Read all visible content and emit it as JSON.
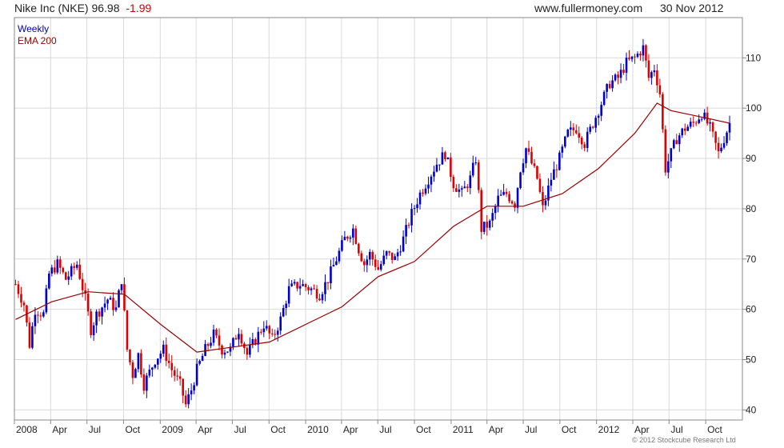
{
  "header": {
    "title": "Nike Inc (NKE) 96.98",
    "change": "-1.99",
    "site": "www.fullermoney.com",
    "date": "30 Nov 2012"
  },
  "copyright": "© 2012 Stockcube Research Ltd",
  "colors": {
    "up": "#0000cc",
    "down": "#dd0000",
    "ema": "#990000",
    "grid": "#d9d9d9"
  },
  "chart_data": {
    "type": "candlestick",
    "legend": {
      "position": "top-left",
      "entries": [
        "Weekly",
        "EMA 200"
      ]
    },
    "grid": true,
    "y_axis": {
      "side": "right",
      "range": [
        38,
        118
      ],
      "ticks": [
        40,
        50,
        60,
        70,
        80,
        90,
        100,
        110
      ]
    },
    "x_axis": {
      "range": [
        "2008-01-01",
        "2012-12-12"
      ],
      "ticks": [
        {
          "label": "2008",
          "date": "2008-01-01"
        },
        {
          "label": "Apr",
          "date": "2008-04-01"
        },
        {
          "label": "Jul",
          "date": "2008-07-01"
        },
        {
          "label": "Oct",
          "date": "2008-10-01"
        },
        {
          "label": "2009",
          "date": "2009-01-01"
        },
        {
          "label": "Apr",
          "date": "2009-04-01"
        },
        {
          "label": "Jul",
          "date": "2009-07-01"
        },
        {
          "label": "Oct",
          "date": "2009-10-01"
        },
        {
          "label": "2010",
          "date": "2010-01-01"
        },
        {
          "label": "Apr",
          "date": "2010-04-01"
        },
        {
          "label": "Jul",
          "date": "2010-07-01"
        },
        {
          "label": "Oct",
          "date": "2010-10-01"
        },
        {
          "label": "2011",
          "date": "2011-01-01"
        },
        {
          "label": "Apr",
          "date": "2011-04-01"
        },
        {
          "label": "Jul",
          "date": "2011-07-01"
        },
        {
          "label": "Oct",
          "date": "2011-10-01"
        },
        {
          "label": "2012",
          "date": "2012-01-01"
        },
        {
          "label": "Apr",
          "date": "2012-04-01"
        },
        {
          "label": "Jul",
          "date": "2012-07-01"
        },
        {
          "label": "Oct",
          "date": "2012-10-01"
        }
      ]
    },
    "close_path": [
      [
        "2008-01-04",
        65
      ],
      [
        "2008-01-25",
        61
      ],
      [
        "2008-02-08",
        53
      ],
      [
        "2008-02-22",
        60
      ],
      [
        "2008-03-14",
        59
      ],
      [
        "2008-03-28",
        67
      ],
      [
        "2008-04-18",
        69
      ],
      [
        "2008-05-09",
        66
      ],
      [
        "2008-06-06",
        69
      ],
      [
        "2008-06-27",
        62
      ],
      [
        "2008-07-11",
        56
      ],
      [
        "2008-07-25",
        59
      ],
      [
        "2008-08-22",
        62
      ],
      [
        "2008-09-12",
        60
      ],
      [
        "2008-09-26",
        66
      ],
      [
        "2008-10-10",
        52
      ],
      [
        "2008-10-24",
        47
      ],
      [
        "2008-11-07",
        51
      ],
      [
        "2008-11-21",
        45
      ],
      [
        "2008-12-19",
        50
      ],
      [
        "2009-01-09",
        52
      ],
      [
        "2009-01-30",
        48
      ],
      [
        "2009-02-20",
        45
      ],
      [
        "2009-03-06",
        41
      ],
      [
        "2009-03-20",
        44
      ],
      [
        "2009-04-03",
        48
      ],
      [
        "2009-04-24",
        52
      ],
      [
        "2009-05-15",
        55
      ],
      [
        "2009-06-05",
        52
      ],
      [
        "2009-06-26",
        52
      ],
      [
        "2009-07-17",
        56
      ],
      [
        "2009-08-07",
        51
      ],
      [
        "2009-08-28",
        54
      ],
      [
        "2009-09-18",
        57
      ],
      [
        "2009-10-09",
        54
      ],
      [
        "2009-10-30",
        58
      ],
      [
        "2009-11-20",
        64
      ],
      [
        "2009-12-18",
        65
      ],
      [
        "2010-01-15",
        64
      ],
      [
        "2010-02-05",
        63
      ],
      [
        "2010-02-26",
        66
      ],
      [
        "2010-03-19",
        70
      ],
      [
        "2010-04-09",
        74
      ],
      [
        "2010-04-30",
        76
      ],
      [
        "2010-05-14",
        72
      ],
      [
        "2010-05-28",
        69
      ],
      [
        "2010-06-11",
        71
      ],
      [
        "2010-07-02",
        68
      ],
      [
        "2010-07-23",
        71
      ],
      [
        "2010-08-13",
        70
      ],
      [
        "2010-09-03",
        74
      ],
      [
        "2010-09-24",
        79
      ],
      [
        "2010-10-15",
        83
      ],
      [
        "2010-11-05",
        86
      ],
      [
        "2010-11-26",
        89
      ],
      [
        "2010-12-17",
        91
      ],
      [
        "2011-01-07",
        85
      ],
      [
        "2011-01-28",
        83
      ],
      [
        "2011-02-18",
        86
      ],
      [
        "2011-03-04",
        90
      ],
      [
        "2011-03-18",
        76
      ],
      [
        "2011-04-08",
        77
      ],
      [
        "2011-04-29",
        82
      ],
      [
        "2011-05-20",
        83
      ],
      [
        "2011-06-10",
        81
      ],
      [
        "2011-06-24",
        88
      ],
      [
        "2011-07-08",
        92
      ],
      [
        "2011-08-05",
        86
      ],
      [
        "2011-08-19",
        80
      ],
      [
        "2011-09-09",
        86
      ],
      [
        "2011-09-30",
        90
      ],
      [
        "2011-10-21",
        95
      ],
      [
        "2011-11-11",
        96
      ],
      [
        "2011-12-02",
        93
      ],
      [
        "2011-12-23",
        97
      ],
      [
        "2012-01-13",
        101
      ],
      [
        "2012-02-03",
        105
      ],
      [
        "2012-02-24",
        106
      ],
      [
        "2012-03-16",
        109
      ],
      [
        "2012-04-06",
        110
      ],
      [
        "2012-04-27",
        112
      ],
      [
        "2012-05-11",
        106
      ],
      [
        "2012-05-25",
        108
      ],
      [
        "2012-06-08",
        103
      ],
      [
        "2012-06-22",
        88
      ],
      [
        "2012-07-06",
        91
      ],
      [
        "2012-07-20",
        94
      ],
      [
        "2012-08-10",
        96
      ],
      [
        "2012-08-31",
        97
      ],
      [
        "2012-09-21",
        99
      ],
      [
        "2012-10-12",
        96
      ],
      [
        "2012-11-02",
        91
      ],
      [
        "2012-11-16",
        94
      ],
      [
        "2012-11-30",
        97
      ]
    ],
    "ema_200": [
      [
        "2008-01-04",
        58
      ],
      [
        "2008-04-04",
        61.5
      ],
      [
        "2008-07-04",
        63.5
      ],
      [
        "2008-10-03",
        63
      ],
      [
        "2009-01-02",
        57
      ],
      [
        "2009-04-03",
        51.5
      ],
      [
        "2009-07-03",
        52.5
      ],
      [
        "2009-10-02",
        53.5
      ],
      [
        "2010-01-01",
        57
      ],
      [
        "2010-04-02",
        60.5
      ],
      [
        "2010-07-02",
        66.5
      ],
      [
        "2010-10-01",
        69.5
      ],
      [
        "2011-01-07",
        76.5
      ],
      [
        "2011-04-01",
        80.5
      ],
      [
        "2011-07-01",
        80.5
      ],
      [
        "2011-10-07",
        83
      ],
      [
        "2012-01-06",
        88
      ],
      [
        "2012-04-06",
        95
      ],
      [
        "2012-06-01",
        101
      ],
      [
        "2012-07-06",
        99.5
      ],
      [
        "2012-10-05",
        98
      ],
      [
        "2012-11-30",
        97
      ]
    ]
  }
}
